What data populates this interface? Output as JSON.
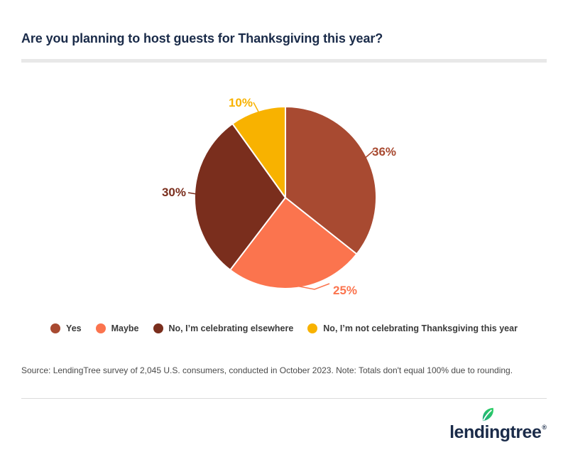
{
  "header": {
    "title": "Are you planning to host guests for Thanksgiving this year?"
  },
  "chart_data": {
    "type": "pie",
    "title": "Are you planning to host guests for Thanksgiving this year?",
    "categories": [
      "Yes",
      "Maybe",
      "No, I’m celebrating elsewhere",
      "No, I’m not celebrating Thanksgiving this year"
    ],
    "values": [
      36,
      25,
      30,
      10
    ],
    "unit": "%",
    "slice_labels": [
      "36%",
      "25%",
      "30%",
      "10%"
    ],
    "colors": [
      "#A84A31",
      "#FB744E",
      "#7A2E1D",
      "#F8B200"
    ],
    "start_angle_deg": -90,
    "direction": "clockwise",
    "legend_position": "bottom",
    "note": "Totals don't equal 100% due to rounding"
  },
  "footer": {
    "source": "Source: LendingTree survey of 2,045 U.S. consumers, conducted in October 2023. Note: Totals don't equal 100% due to rounding.",
    "logo_text": "lendingtree",
    "logo_trademark": "®"
  },
  "theme": {
    "title_color": "#1A2B49",
    "divider_color": "#E8E8E8",
    "legend_text_color": "#3A3A3A",
    "source_text_color": "#4A4A4A",
    "logo_navy": "#1A2B49",
    "leaf_green_dark": "#1FA97E",
    "leaf_green_light": "#2ED163"
  }
}
